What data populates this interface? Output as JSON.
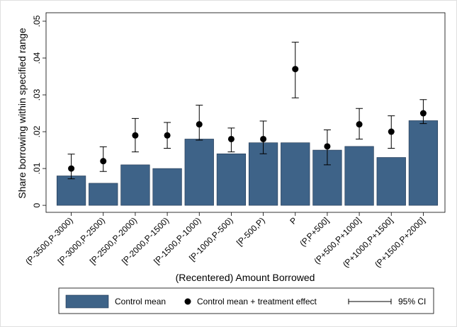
{
  "chart_data": {
    "type": "bar",
    "x_label": "(Recentered) Amount Borrowed",
    "y_label": "Share borrowing within specified range",
    "categories": [
      "(P-3500,P-3000)",
      "[P-3000,P-2500)",
      "[P-2500,P-2000)",
      "[P-2000,P-1500)",
      "[P-1500,P-1000)",
      "[P-1000,P-500)",
      "[P-500,P)",
      "P",
      "(P,P+500]",
      "(P+500,P+1000]",
      "(P+1000,P+1500]",
      "(P+1500,P+2000]"
    ],
    "series": [
      {
        "name": "Control mean",
        "type": "bar",
        "color": "#3e6388",
        "values": [
          0.008,
          0.006,
          0.011,
          0.01,
          0.018,
          0.014,
          0.017,
          0.017,
          0.015,
          0.016,
          0.013,
          0.023
        ]
      },
      {
        "name": "Control mean + treatment effect",
        "type": "scatter",
        "color": "#000000",
        "values": [
          0.01,
          0.012,
          0.019,
          0.019,
          0.022,
          0.018,
          0.018,
          0.037,
          0.016,
          0.022,
          0.02,
          0.025
        ]
      },
      {
        "name": "95% CI",
        "type": "errorbar",
        "color": "#000000",
        "lower": [
          0.0072,
          0.0092,
          0.0145,
          0.0155,
          0.0177,
          0.0145,
          0.014,
          0.0292,
          0.011,
          0.018,
          0.0155,
          0.0222
        ],
        "upper": [
          0.0139,
          0.0159,
          0.0236,
          0.0225,
          0.0272,
          0.021,
          0.0229,
          0.0443,
          0.0205,
          0.0263,
          0.0243,
          0.0287
        ]
      }
    ],
    "ylim": [
      -0.0019,
      0.0523
    ],
    "yticks": [
      0,
      {
        "value": 0.01,
        "label": ".01"
      },
      {
        "value": 0.02,
        "label": ".02"
      },
      {
        "value": 0.03,
        "label": ".03"
      },
      {
        "value": 0.04,
        "label": ".04"
      },
      {
        "value": 0.05,
        "label": ".05"
      }
    ],
    "legend": "bottom"
  }
}
